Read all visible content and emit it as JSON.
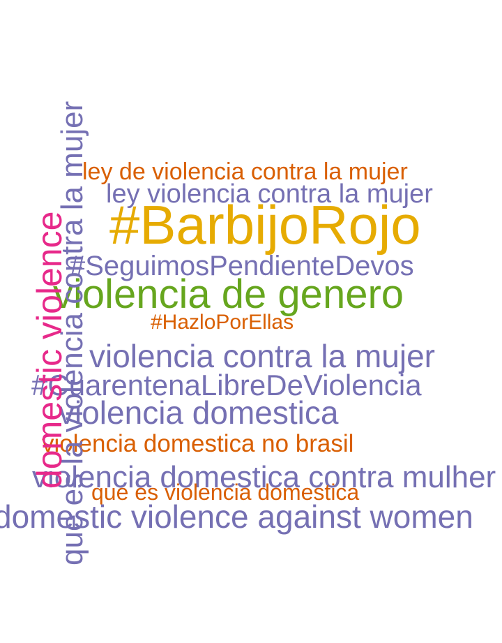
{
  "palette": {
    "purple": "#7570b3",
    "orange": "#d95f02",
    "gold": "#e6ab02",
    "green": "#66a61e",
    "magenta": "#e7298a"
  },
  "words": [
    {
      "id": "w1",
      "text": "#BarbijoRojo",
      "color": "gold"
    },
    {
      "id": "w2",
      "text": "ley de violencia contra la mujer",
      "color": "orange"
    },
    {
      "id": "w3",
      "text": "ley violencia contra la mujer",
      "color": "purple"
    },
    {
      "id": "w4",
      "text": "#SeguimosPendienteDevos",
      "color": "purple"
    },
    {
      "id": "w5",
      "text": "violencia de genero",
      "color": "green"
    },
    {
      "id": "w6",
      "text": "#HazloPorEllas",
      "color": "orange"
    },
    {
      "id": "w7",
      "text": "violencia contra la mujer",
      "color": "purple"
    },
    {
      "id": "w8",
      "text": "#CuarentenaLibreDeViolencia",
      "color": "purple"
    },
    {
      "id": "w9",
      "text": "violencia domestica",
      "color": "purple"
    },
    {
      "id": "w10",
      "text": "violencia domestica no brasil",
      "color": "orange"
    },
    {
      "id": "w11",
      "text": "violencia domestica contra mulher",
      "color": "purple"
    },
    {
      "id": "w12",
      "text": "que es violencia domestica",
      "color": "orange"
    },
    {
      "id": "w13",
      "text": "domestic violence against women",
      "color": "purple"
    },
    {
      "id": "w14",
      "text": "que es la violencia contra la mujer",
      "color": "purple"
    },
    {
      "id": "w15",
      "text": "domestic violence",
      "color": "magenta"
    }
  ]
}
